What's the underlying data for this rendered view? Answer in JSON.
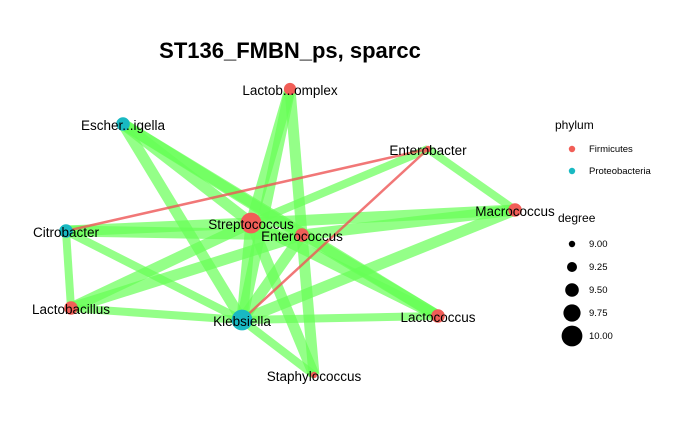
{
  "title": "ST136_FMBN_ps, sparcc",
  "colors": {
    "positive_edge": "#66ff55",
    "negative_edge": "#ee5555",
    "firmicutes": "#f15e57",
    "proteobacteria": "#19b9c2"
  },
  "nodes": [
    {
      "id": "lactobcomplex",
      "label": "Lactob...omplex",
      "phylum": "Firmicutes",
      "degree": 9.4
    },
    {
      "id": "escherigella",
      "label": "Escher...igella",
      "phylum": "Proteobacteria",
      "degree": 9.5
    },
    {
      "id": "enterobacter",
      "label": "Enterobacter",
      "phylum": "Firmicutes",
      "degree": 9.0
    },
    {
      "id": "macrococcus",
      "label": "Macrococcus",
      "phylum": "Firmicutes",
      "degree": 9.5
    },
    {
      "id": "citrobacter",
      "label": "Citrobacter",
      "phylum": "Proteobacteria",
      "degree": 9.5
    },
    {
      "id": "streptococcus",
      "label": "Streptococcus",
      "phylum": "Firmicutes",
      "degree": 10.0
    },
    {
      "id": "enterococcus",
      "label": "Enterococcus",
      "phylum": "Firmicutes",
      "degree": 9.5
    },
    {
      "id": "lactobacillus",
      "label": "Lactobacillus",
      "phylum": "Firmicutes",
      "degree": 9.5
    },
    {
      "id": "klebsiella",
      "label": "Klebsiella",
      "phylum": "Proteobacteria",
      "degree": 10.0
    },
    {
      "id": "lactococcus",
      "label": "Lactococcus",
      "phylum": "Firmicutes",
      "degree": 9.5
    },
    {
      "id": "staphylococcus",
      "label": "Staphylococcus",
      "phylum": "Firmicutes",
      "degree": 9.0
    }
  ],
  "edges": [
    {
      "source": "streptococcus",
      "target": "lactobcomplex",
      "sign": "positive",
      "weight": 3
    },
    {
      "source": "enterococcus",
      "target": "lactobcomplex",
      "sign": "positive",
      "weight": 3
    },
    {
      "source": "klebsiella",
      "target": "lactobcomplex",
      "sign": "positive",
      "weight": 3
    },
    {
      "source": "escherigella",
      "target": "streptococcus",
      "sign": "positive",
      "weight": 3
    },
    {
      "source": "escherigella",
      "target": "enterococcus",
      "sign": "positive",
      "weight": 3
    },
    {
      "source": "escherigella",
      "target": "lactococcus",
      "sign": "positive",
      "weight": 3
    },
    {
      "source": "escherigella",
      "target": "klebsiella",
      "sign": "positive",
      "weight": 3
    },
    {
      "source": "enterobacter",
      "target": "streptococcus",
      "sign": "positive",
      "weight": 2
    },
    {
      "source": "enterobacter",
      "target": "macrococcus",
      "sign": "positive",
      "weight": 2
    },
    {
      "source": "enterobacter",
      "target": "citrobacter",
      "sign": "negative",
      "weight": 1
    },
    {
      "source": "enterobacter",
      "target": "klebsiella",
      "sign": "negative",
      "weight": 1
    },
    {
      "source": "macrococcus",
      "target": "streptococcus",
      "sign": "positive",
      "weight": 3
    },
    {
      "source": "macrococcus",
      "target": "enterococcus",
      "sign": "positive",
      "weight": 3
    },
    {
      "source": "macrococcus",
      "target": "klebsiella",
      "sign": "positive",
      "weight": 3
    },
    {
      "source": "citrobacter",
      "target": "streptococcus",
      "sign": "positive",
      "weight": 3
    },
    {
      "source": "citrobacter",
      "target": "enterococcus",
      "sign": "positive",
      "weight": 3
    },
    {
      "source": "citrobacter",
      "target": "lactobacillus",
      "sign": "positive",
      "weight": 2
    },
    {
      "source": "citrobacter",
      "target": "klebsiella",
      "sign": "positive",
      "weight": 2
    },
    {
      "source": "streptococcus",
      "target": "lactobacillus",
      "sign": "positive",
      "weight": 3
    },
    {
      "source": "streptococcus",
      "target": "klebsiella",
      "sign": "positive",
      "weight": 3
    },
    {
      "source": "streptococcus",
      "target": "lactococcus",
      "sign": "positive",
      "weight": 3
    },
    {
      "source": "streptococcus",
      "target": "staphylococcus",
      "sign": "positive",
      "weight": 3
    },
    {
      "source": "enterococcus",
      "target": "lactobacillus",
      "sign": "positive",
      "weight": 3
    },
    {
      "source": "enterococcus",
      "target": "klebsiella",
      "sign": "positive",
      "weight": 3
    },
    {
      "source": "enterococcus",
      "target": "lactococcus",
      "sign": "positive",
      "weight": 3
    },
    {
      "source": "enterococcus",
      "target": "staphylococcus",
      "sign": "positive",
      "weight": 3
    },
    {
      "source": "lactobacillus",
      "target": "klebsiella",
      "sign": "positive",
      "weight": 2
    },
    {
      "source": "klebsiella",
      "target": "lactococcus",
      "sign": "positive",
      "weight": 2
    },
    {
      "source": "klebsiella",
      "target": "staphylococcus",
      "sign": "positive",
      "weight": 2
    }
  ],
  "legend": {
    "phylum": {
      "title": "phylum",
      "items": [
        {
          "label": "Firmicutes",
          "color": "#f15e57"
        },
        {
          "label": "Proteobacteria",
          "color": "#19b9c2"
        }
      ]
    },
    "degree": {
      "title": "degree",
      "items": [
        {
          "label": "9.00",
          "value": 9.0
        },
        {
          "label": "9.25",
          "value": 9.25
        },
        {
          "label": "9.50",
          "value": 9.5
        },
        {
          "label": "9.75",
          "value": 9.75
        },
        {
          "label": "10.00",
          "value": 10.0
        }
      ]
    }
  }
}
